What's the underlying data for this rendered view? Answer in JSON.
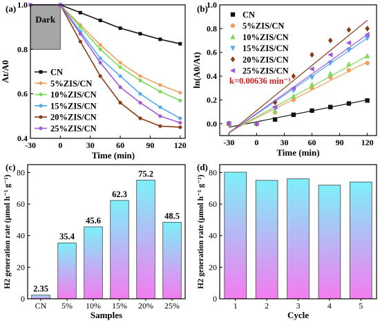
{
  "chart_data": [
    {
      "panel": "(a)",
      "type": "line",
      "xlabel": "Time (min)",
      "ylabel": "At/A0",
      "xlim": [
        -30,
        125
      ],
      "ylim": [
        0.4,
        1.0
      ],
      "xticks": [
        "-30",
        "0",
        "30",
        "60",
        "90",
        "120"
      ],
      "yticks": [
        "0.4",
        "0.6",
        "0.8",
        "1.0"
      ],
      "annotation": "Dark",
      "x": [
        -30,
        0,
        20,
        40,
        60,
        80,
        100,
        120
      ],
      "legend_position": "bottom-left",
      "series": [
        {
          "name": "CN",
          "color": "#111111",
          "values": [
            1.0,
            1.0,
            0.965,
            0.93,
            0.895,
            0.87,
            0.845,
            0.825
          ]
        },
        {
          "name": "5%ZIS/CN",
          "color": "#f0a05a",
          "values": [
            1.0,
            1.0,
            0.91,
            0.82,
            0.74,
            0.68,
            0.64,
            0.605
          ]
        },
        {
          "name": "10%ZIS/CN",
          "color": "#7ed957",
          "values": [
            1.0,
            1.0,
            0.9,
            0.8,
            0.72,
            0.66,
            0.61,
            0.57
          ]
        },
        {
          "name": "15%ZIS/CN",
          "color": "#4faaf0",
          "values": [
            1.0,
            1.0,
            0.88,
            0.76,
            0.68,
            0.6,
            0.54,
            0.49
          ]
        },
        {
          "name": "20%ZIS/CN",
          "color": "#8b3a0f",
          "values": [
            1.0,
            1.0,
            0.835,
            0.68,
            0.56,
            0.49,
            0.455,
            0.45
          ]
        },
        {
          "name": "25%ZIS/CN",
          "color": "#a259d9",
          "values": [
            1.0,
            1.0,
            0.87,
            0.74,
            0.63,
            0.56,
            0.5,
            0.47
          ]
        }
      ]
    },
    {
      "panel": "(b)",
      "type": "scatter",
      "xlabel": "Time (min)",
      "ylabel": "ln(A0/At)",
      "xlim": [
        -40,
        130
      ],
      "ylim": [
        -0.1,
        1.0
      ],
      "xticks": [
        "-30",
        "0",
        "30",
        "60",
        "90",
        "120"
      ],
      "yticks": [
        "0.0",
        "0.2",
        "0.4",
        "0.6",
        "0.8",
        "1.0"
      ],
      "annotation": "k=0.00636 min⁻¹",
      "x": [
        -30,
        0,
        20,
        40,
        60,
        80,
        100,
        120
      ],
      "legend_position": "top-left",
      "series": [
        {
          "name": "CN",
          "color": "#111111",
          "marker": "square",
          "values": [
            0.0,
            0.0,
            0.035,
            0.075,
            0.11,
            0.14,
            0.17,
            0.195
          ],
          "fit": [
            -0.03,
            0.2
          ]
        },
        {
          "name": "5%ZIS/CN",
          "color": "#f0a05a",
          "marker": "circle",
          "values": [
            0.0,
            0.0,
            0.095,
            0.2,
            0.3,
            0.39,
            0.45,
            0.51
          ],
          "fit": [
            -0.07,
            0.52
          ]
        },
        {
          "name": "10%ZIS/CN",
          "color": "#7ed957",
          "marker": "triangle-up",
          "values": [
            0.0,
            0.0,
            0.105,
            0.23,
            0.33,
            0.42,
            0.5,
            0.57
          ],
          "fit": [
            -0.07,
            0.57
          ]
        },
        {
          "name": "15%ZIS/CN",
          "color": "#4faaf0",
          "marker": "triangle-down",
          "values": [
            0.0,
            0.0,
            0.13,
            0.28,
            0.39,
            0.51,
            0.62,
            0.72
          ],
          "fit": [
            -0.08,
            0.72
          ]
        },
        {
          "name": "20%ZIS/CN",
          "color": "#8b3a0f",
          "marker": "diamond",
          "values": [
            0.0,
            0.0,
            0.18,
            0.4,
            0.58,
            0.7,
            0.79,
            0.8
          ],
          "fit": [
            -0.08,
            0.87
          ]
        },
        {
          "name": "25%ZIS/CN",
          "color": "#a259d9",
          "marker": "triangle-left",
          "values": [
            0.0,
            0.0,
            0.14,
            0.3,
            0.46,
            0.58,
            0.68,
            0.75
          ],
          "fit": [
            -0.08,
            0.75
          ]
        }
      ]
    },
    {
      "panel": "(c)",
      "type": "bar",
      "xlabel": "Samples",
      "ylabel": "H2 generation rate (μmol h⁻¹ g⁻¹)",
      "ylim": [
        0,
        85
      ],
      "yticks": [
        "0",
        "20",
        "40",
        "60",
        "80"
      ],
      "categories": [
        "CN",
        "5%",
        "10%",
        "15%",
        "20%",
        "25%"
      ],
      "values": [
        2.35,
        35.4,
        45.6,
        62.3,
        75.2,
        48.5
      ],
      "data_labels": [
        "2.35",
        "35.4",
        "45.6",
        "62.3",
        "75.2",
        "48.5"
      ],
      "gradient": [
        "#7df0f8",
        "#f47cf0"
      ]
    },
    {
      "panel": "(d)",
      "type": "bar",
      "xlabel": "Cycle",
      "ylabel": "H2 generation rate (μmol h⁻¹ g⁻¹)",
      "ylim": [
        0,
        85
      ],
      "yticks": [
        "0",
        "20",
        "40",
        "60",
        "80"
      ],
      "categories": [
        "1",
        "2",
        "3",
        "4",
        "5"
      ],
      "values": [
        80.2,
        75.0,
        76.0,
        72.0,
        74.0
      ],
      "gradient": [
        "#7df0f8",
        "#f47cf0"
      ]
    }
  ]
}
